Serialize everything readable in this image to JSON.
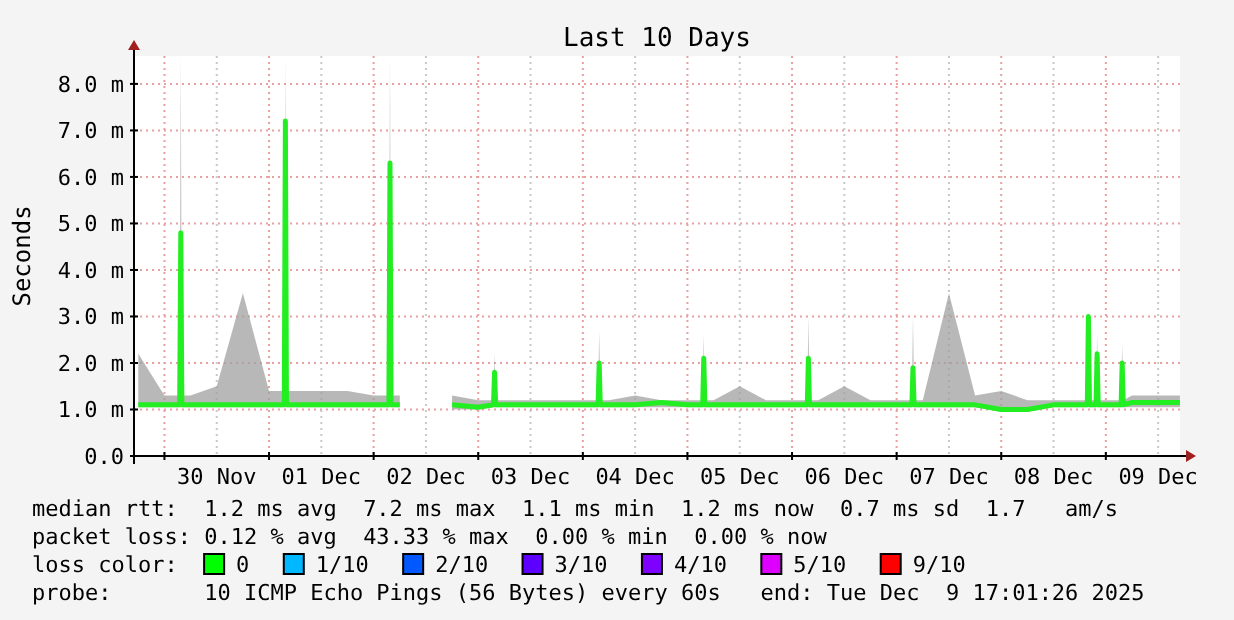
{
  "chart_data": {
    "type": "line",
    "title": "Last 10 Days",
    "ylabel": "Seconds",
    "x": [
      "2025-11-29T18:00",
      "2025-11-30T00:00",
      "2025-11-30T03:30",
      "2025-11-30T03:45",
      "2025-11-30T04:00",
      "2025-11-30T06:00",
      "2025-11-30T12:00",
      "2025-11-30T18:00",
      "2025-12-01T00:00",
      "2025-12-01T03:30",
      "2025-12-01T03:45",
      "2025-12-01T04:00",
      "2025-12-01T06:00",
      "2025-12-01T12:00",
      "2025-12-01T18:00",
      "2025-12-02T00:00",
      "2025-12-02T03:30",
      "2025-12-02T03:45",
      "2025-12-02T04:00",
      "2025-12-02T06:00",
      "2025-12-02T12:00",
      "2025-12-02T18:00",
      "2025-12-03T00:00",
      "2025-12-03T03:30",
      "2025-12-03T03:45",
      "2025-12-03T04:00",
      "2025-12-03T06:00",
      "2025-12-03T12:00",
      "2025-12-03T18:00",
      "2025-12-04T00:00",
      "2025-12-04T03:30",
      "2025-12-04T03:45",
      "2025-12-04T04:00",
      "2025-12-04T06:00",
      "2025-12-04T12:00",
      "2025-12-04T18:00",
      "2025-12-05T00:00",
      "2025-12-05T03:30",
      "2025-12-05T03:45",
      "2025-12-05T04:00",
      "2025-12-05T06:00",
      "2025-12-05T12:00",
      "2025-12-05T18:00",
      "2025-12-06T00:00",
      "2025-12-06T03:30",
      "2025-12-06T03:45",
      "2025-12-06T04:00",
      "2025-12-06T06:00",
      "2025-12-06T12:00",
      "2025-12-06T18:00",
      "2025-12-07T00:00",
      "2025-12-07T03:30",
      "2025-12-07T03:45",
      "2025-12-07T04:00",
      "2025-12-07T06:00",
      "2025-12-07T12:00",
      "2025-12-07T18:00",
      "2025-12-08T00:00",
      "2025-12-08T06:00",
      "2025-12-08T12:00",
      "2025-12-08T18:00",
      "2025-12-08T19:45",
      "2025-12-08T20:00",
      "2025-12-08T20:15",
      "2025-12-08T21:45",
      "2025-12-08T22:00",
      "2025-12-08T22:15",
      "2025-12-09T00:00",
      "2025-12-09T03:30",
      "2025-12-09T03:45",
      "2025-12-09T04:00",
      "2025-12-09T06:00",
      "2025-12-09T12:00",
      "2025-12-09T17:00"
    ],
    "series": [
      {
        "color": "#22ee22",
        "values": [
          1.1,
          1.1,
          1.1,
          4.8,
          1.1,
          1.1,
          1.1,
          1.1,
          1.1,
          1.1,
          7.2,
          1.1,
          1.1,
          1.1,
          1.1,
          1.1,
          1.1,
          6.3,
          1.1,
          1.1,
          null,
          1.1,
          1.05,
          1.1,
          1.8,
          1.1,
          1.1,
          1.1,
          1.1,
          1.1,
          1.1,
          2.0,
          1.1,
          1.1,
          1.1,
          1.15,
          1.1,
          1.1,
          2.1,
          1.1,
          1.1,
          1.1,
          1.1,
          1.1,
          1.1,
          2.1,
          1.1,
          1.1,
          1.1,
          1.1,
          1.1,
          1.1,
          1.9,
          1.1,
          1.1,
          1.1,
          1.1,
          1.0,
          1.0,
          1.1,
          1.1,
          1.1,
          3.0,
          1.1,
          1.1,
          2.2,
          1.1,
          1.1,
          1.1,
          2.0,
          1.1,
          1.15,
          1.15,
          1.15
        ],
        "lower": [
          1.05,
          1.05,
          1.05,
          1.05,
          1.05,
          1.05,
          1.05,
          1.05,
          1.05,
          1.05,
          1.05,
          1.05,
          1.05,
          1.05,
          1.05,
          1.05,
          1.05,
          1.05,
          1.05,
          1.05,
          null,
          1.0,
          1.0,
          1.05,
          1.05,
          1.05,
          1.05,
          1.05,
          1.05,
          1.05,
          1.05,
          1.05,
          1.05,
          1.05,
          1.05,
          1.05,
          1.05,
          1.05,
          1.05,
          1.05,
          1.05,
          1.05,
          1.05,
          1.05,
          1.05,
          1.05,
          1.05,
          1.05,
          1.05,
          1.05,
          1.05,
          1.05,
          1.05,
          1.05,
          1.05,
          1.05,
          1.05,
          0.95,
          0.95,
          1.05,
          1.05,
          1.05,
          1.05,
          1.05,
          1.05,
          1.05,
          1.05,
          1.05,
          1.05,
          1.05,
          1.05,
          1.05,
          1.05,
          1.05
        ],
        "upper": [
          2.2,
          1.3,
          1.3,
          8.6,
          1.3,
          1.3,
          1.5,
          3.5,
          1.4,
          1.4,
          8.6,
          1.4,
          1.4,
          1.4,
          1.4,
          1.3,
          1.3,
          8.6,
          1.3,
          1.3,
          null,
          1.3,
          1.2,
          1.2,
          2.2,
          1.2,
          1.2,
          1.2,
          1.2,
          1.2,
          1.2,
          2.7,
          1.2,
          1.2,
          1.3,
          1.2,
          1.2,
          1.2,
          2.6,
          1.2,
          1.2,
          1.5,
          1.2,
          1.2,
          1.2,
          3.0,
          1.2,
          1.2,
          1.5,
          1.2,
          1.2,
          1.2,
          3.0,
          1.2,
          1.2,
          3.5,
          1.3,
          1.4,
          1.2,
          1.2,
          1.2,
          1.2,
          3.1,
          1.2,
          1.2,
          2.6,
          1.2,
          1.2,
          1.2,
          2.4,
          1.2,
          1.3,
          1.3,
          1.3
        ]
      }
    ],
    "xlim": [
      "2025-11-29T17:01",
      "2025-12-09T17:01"
    ],
    "xticks": [
      {
        "value": "2025-11-30T00:00",
        "label": null
      },
      {
        "value": "2025-11-30T12:00",
        "label": "30 Nov"
      },
      {
        "value": "2025-12-01T00:00",
        "label": null
      },
      {
        "value": "2025-12-01T12:00",
        "label": "01 Dec"
      },
      {
        "value": "2025-12-02T00:00",
        "label": null
      },
      {
        "value": "2025-12-02T12:00",
        "label": "02 Dec"
      },
      {
        "value": "2025-12-03T00:00",
        "label": null
      },
      {
        "value": "2025-12-03T12:00",
        "label": "03 Dec"
      },
      {
        "value": "2025-12-04T00:00",
        "label": null
      },
      {
        "value": "2025-12-04T12:00",
        "label": "04 Dec"
      },
      {
        "value": "2025-12-05T00:00",
        "label": null
      },
      {
        "value": "2025-12-05T12:00",
        "label": "05 Dec"
      },
      {
        "value": "2025-12-06T00:00",
        "label": null
      },
      {
        "value": "2025-12-06T12:00",
        "label": "06 Dec"
      },
      {
        "value": "2025-12-07T00:00",
        "label": null
      },
      {
        "value": "2025-12-07T12:00",
        "label": "07 Dec"
      },
      {
        "value": "2025-12-08T00:00",
        "label": null
      },
      {
        "value": "2025-12-08T12:00",
        "label": "08 Dec"
      },
      {
        "value": "2025-12-09T00:00",
        "label": null
      },
      {
        "value": "2025-12-09T12:00",
        "label": "09 Dec"
      }
    ],
    "ylim": [
      0,
      8.6
    ],
    "yticks": [
      {
        "value": 0,
        "label": "0.0"
      },
      {
        "value": 1,
        "label": "1.0 m"
      },
      {
        "value": 2,
        "label": "2.0 m"
      },
      {
        "value": 3,
        "label": "3.0 m"
      },
      {
        "value": 4,
        "label": "4.0 m"
      },
      {
        "value": 5,
        "label": "5.0 m"
      },
      {
        "value": 6,
        "label": "6.0 m"
      },
      {
        "value": 7,
        "label": "7.0 m"
      },
      {
        "value": 8,
        "label": "8.0 m"
      }
    ],
    "grid": true,
    "marker": "none",
    "line_style": "solid",
    "annotations": [
      "median rtt:  1.2 ms avg  7.2 ms max  1.1 ms min  1.2 ms now  0.7 ms sd  1.7   am/s",
      "packet loss: 0.12 % avg  43.33 % max  0.00 % min  0.00 % now",
      "loss color:",
      "0",
      "1/10",
      "2/10",
      "3/10",
      "4/10",
      "5/10",
      "9/10",
      "probe:       10 ICMP Echo Pings (56 Bytes) every 60s   end: Tue Dec  9 17:01:26 2025"
    ]
  }
}
